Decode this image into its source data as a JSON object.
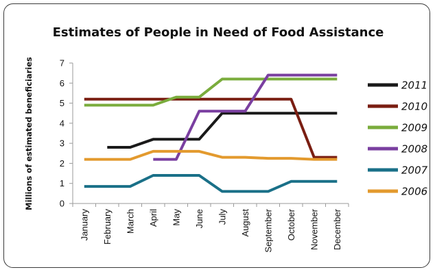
{
  "chart_data": {
    "type": "line",
    "title": "Estimates of People in Need of Food Assistance",
    "ylabel": "Millions of estimated beneficiaries",
    "xlabel": "",
    "ylim": [
      0,
      7
    ],
    "yticks": [
      "0",
      "1",
      "2",
      "3",
      "4",
      "5",
      "6",
      "7"
    ],
    "categories": [
      "January",
      "February",
      "March",
      "April",
      "May",
      "June",
      "July",
      "August",
      "September",
      "October",
      "November",
      "December"
    ],
    "legend_position": "right",
    "grid": false,
    "series": [
      {
        "name": "2011",
        "color": "#1a1a1a",
        "values": [
          null,
          2.8,
          2.8,
          3.2,
          3.2,
          3.2,
          4.5,
          4.5,
          4.5,
          4.5,
          4.5,
          4.5
        ]
      },
      {
        "name": "2010",
        "color": "#7a1e12",
        "values": [
          5.2,
          5.2,
          5.2,
          5.2,
          5.2,
          5.2,
          5.2,
          5.2,
          5.2,
          5.2,
          2.3,
          2.3
        ]
      },
      {
        "name": "2009",
        "color": "#7aac3c",
        "values": [
          4.9,
          4.9,
          4.9,
          4.9,
          5.3,
          5.3,
          6.2,
          6.2,
          6.2,
          6.2,
          6.2,
          6.2
        ]
      },
      {
        "name": "2008",
        "color": "#7a3fa0",
        "values": [
          null,
          null,
          null,
          2.2,
          2.2,
          4.6,
          4.6,
          4.6,
          6.4,
          6.4,
          6.4,
          6.4
        ]
      },
      {
        "name": "2007",
        "color": "#1a7088",
        "values": [
          0.85,
          0.85,
          0.85,
          1.4,
          1.4,
          1.4,
          0.6,
          0.6,
          0.6,
          1.1,
          1.1,
          1.1
        ]
      },
      {
        "name": "2006",
        "color": "#e39a2e",
        "values": [
          2.2,
          2.2,
          2.2,
          2.6,
          2.6,
          2.6,
          2.3,
          2.3,
          2.25,
          2.25,
          2.2,
          2.2
        ]
      }
    ]
  }
}
